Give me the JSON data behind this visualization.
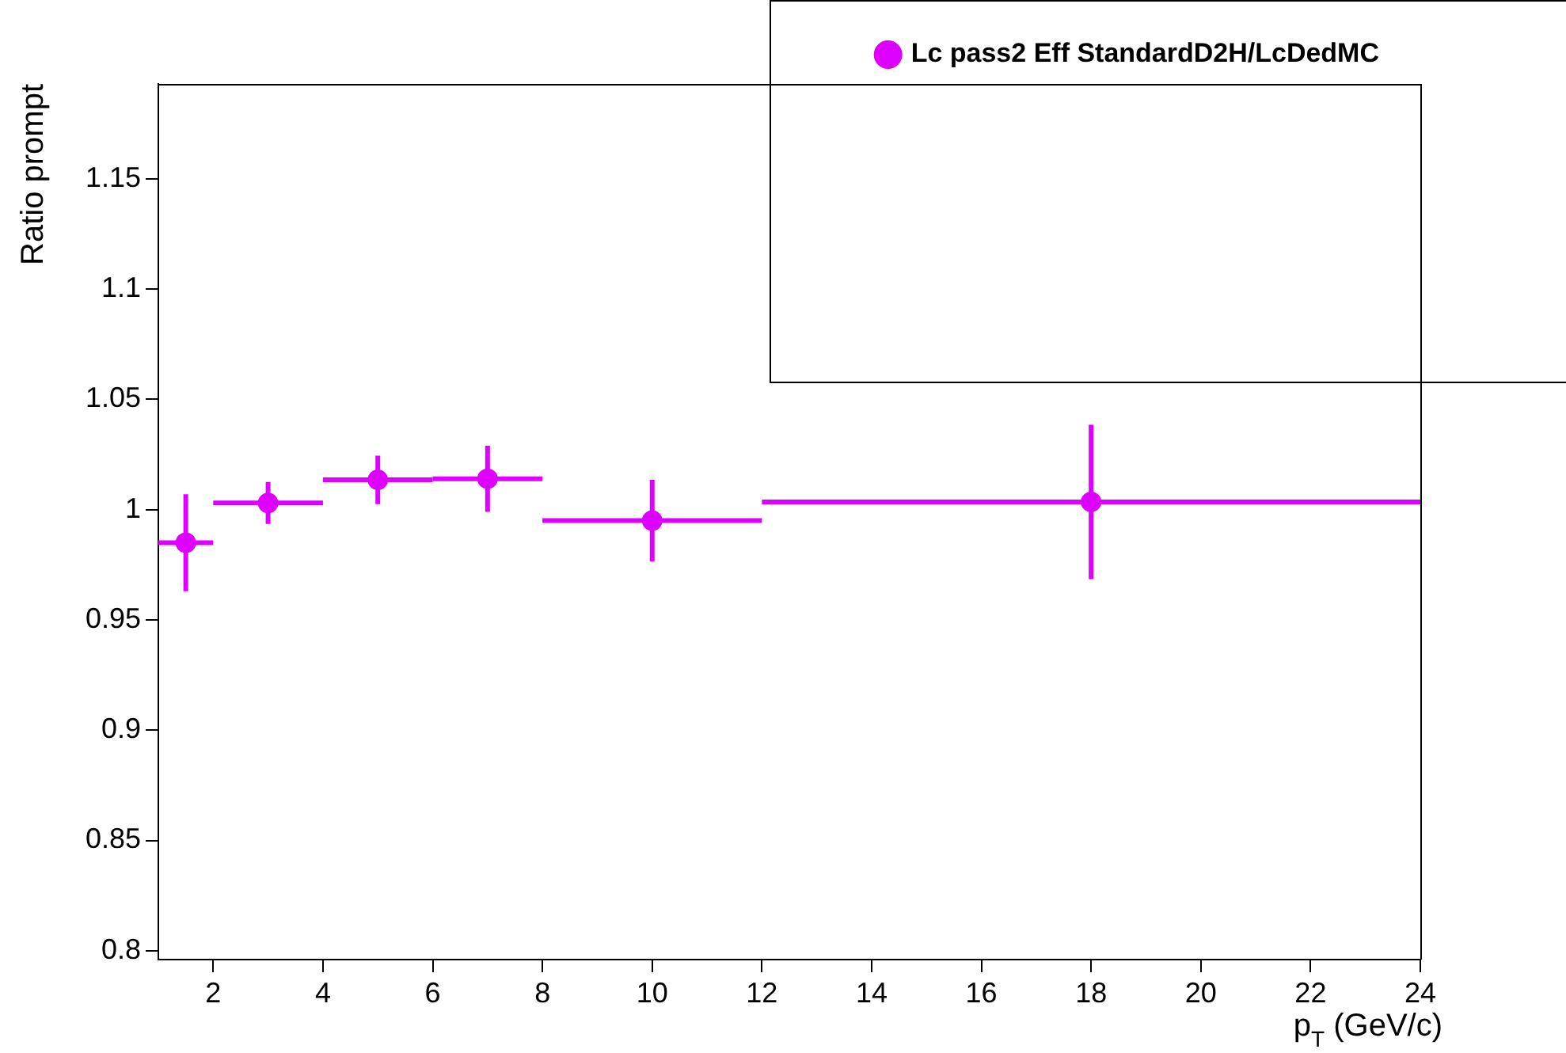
{
  "chart_data": {
    "type": "scatter",
    "xlabel": "p$_{T}$ (GeV/c)",
    "ylabel": "Ratio prompt",
    "x": [
      1.5,
      3,
      5,
      7,
      10,
      18
    ],
    "series": [
      {
        "name": "Lc pass2 Eff StandardD2H/LcDedMC",
        "color": "#dd00ff",
        "values": [
          0.985,
          1.003,
          1.0135,
          1.014,
          0.995,
          1.0035
        ],
        "errors": [
          0.022,
          0.0095,
          0.011,
          0.015,
          0.0185,
          0.035
        ],
        "xerrors": [
          0.5,
          1,
          1,
          1,
          2,
          6
        ]
      }
    ],
    "xlim": [
      1,
      24
    ],
    "xticks": [
      2,
      4,
      6,
      8,
      10,
      12,
      14,
      16,
      18,
      20,
      22,
      24
    ],
    "ylim": [
      0.796,
      1.193
    ],
    "yticks": [
      0.8,
      0.85,
      0.9,
      0.95,
      1,
      1.05,
      1.1,
      1.15
    ],
    "grid": false,
    "legend": "top right",
    "marker": "circle"
  }
}
